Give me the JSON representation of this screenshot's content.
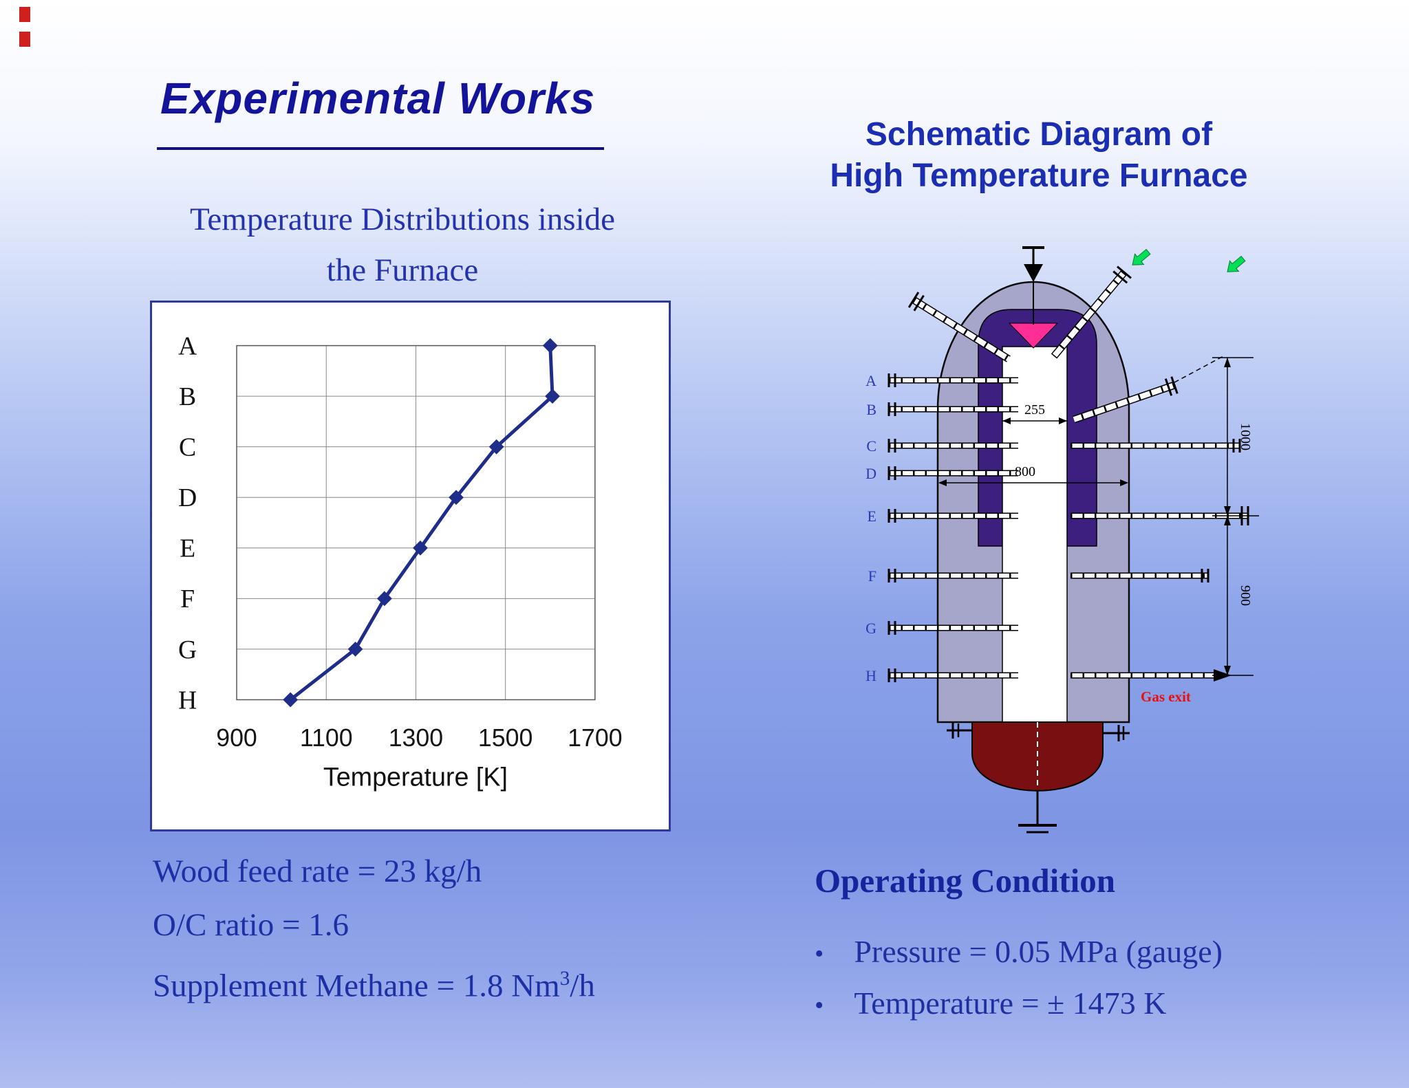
{
  "slide": {
    "title": "Experimental Works",
    "chart_section": {
      "subtitle_line1": "Temperature Distributions inside",
      "subtitle_line2": "the Furnace"
    },
    "left_info": {
      "line1": "Wood feed rate = 23 kg/h",
      "line2": "O/C ratio = 1.6",
      "line3_prefix": "Supplement Methane = 1.8 Nm",
      "line3_sup": "3",
      "line3_suffix": "/h"
    },
    "right": {
      "heading_line1": "Schematic Diagram of",
      "heading_line2": "High Temperature Furnace",
      "operating": {
        "heading": "Operating Condition",
        "bullet_char": "•",
        "bullets": [
          "Pressure = 0.05 MPa (gauge)",
          "Temperature = ± 1473 K"
        ]
      }
    }
  },
  "chart_data": {
    "type": "line",
    "title": "Temperature Distributions inside the Furnace",
    "categories": [
      "A",
      "B",
      "C",
      "D",
      "E",
      "F",
      "G",
      "H"
    ],
    "values": [
      1600,
      1605,
      1480,
      1390,
      1310,
      1230,
      1165,
      1020
    ],
    "x_ticks": [
      900,
      1100,
      1300,
      1500,
      1700
    ],
    "xlim": [
      900,
      1700
    ],
    "xlabel": "Temperature [K]",
    "ylabel": "",
    "grid": true,
    "legend": false,
    "marker": "diamond",
    "series_color": "#1f2d8a"
  },
  "furnace": {
    "rows": [
      "A",
      "B",
      "C",
      "D",
      "E",
      "F",
      "G",
      "H"
    ],
    "dims": {
      "inner_width": "255",
      "outer_width": "800",
      "upper_height": "1000",
      "lower_height": "900"
    },
    "gas_exit_label": "Gas exit",
    "colors": {
      "vessel": "#a6a6cb",
      "lining": "#3c1f7e",
      "feed": "#ff2d96",
      "bottom": "#7a0f12",
      "arrow": "#00df55"
    }
  }
}
